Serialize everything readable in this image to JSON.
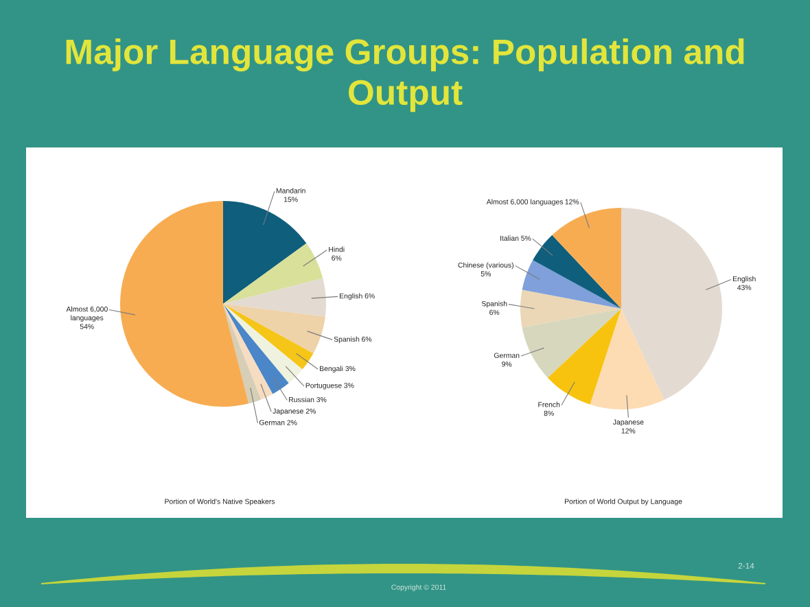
{
  "chart_data": [
    {
      "type": "pie",
      "title": "Major Language Groups: Population and Output",
      "xlabel": "Portion of World's Native Speakers",
      "categories": [
        "Mandarin",
        "Hindi",
        "English",
        "Spanish",
        "Bengali",
        "Portuguese",
        "Russian",
        "Japanese",
        "German",
        "Almost 6,000 languages"
      ],
      "values": [
        15,
        6,
        6,
        6,
        3,
        3,
        3,
        2,
        2,
        54
      ],
      "value_labels": [
        "15%",
        "6%",
        "6%",
        "6%",
        "3%",
        "3%",
        "3%",
        "2%",
        "2%",
        "54%"
      ],
      "colors": [
        "#0f5e7c",
        "#d8e09a",
        "#e3dad1",
        "#eed2a8",
        "#f5c518",
        "#eef2df",
        "#4a86c8",
        "#f6dcc0",
        "#d6ceb6",
        "#f7ac52"
      ]
    },
    {
      "type": "pie",
      "xlabel": "Portion of World Output by Language",
      "categories": [
        "English",
        "Japanese",
        "French",
        "German",
        "Spanish",
        "Chinese (various)",
        "Italian",
        "Almost 6,000 languages"
      ],
      "values": [
        43,
        12,
        8,
        9,
        6,
        5,
        5,
        12
      ],
      "value_labels": [
        "43%",
        "12%",
        "8%",
        "9%",
        "6%",
        "5%",
        "5%",
        "12%"
      ],
      "colors": [
        "#e3dad1",
        "#fddcb4",
        "#f8c30f",
        "#d6d7bd",
        "#ebd7b6",
        "#7fa0db",
        "#0f5e7c",
        "#f7ac52"
      ],
      "annotations": [
        "Copyright © 2011",
        "2-14"
      ]
    }
  ]
}
